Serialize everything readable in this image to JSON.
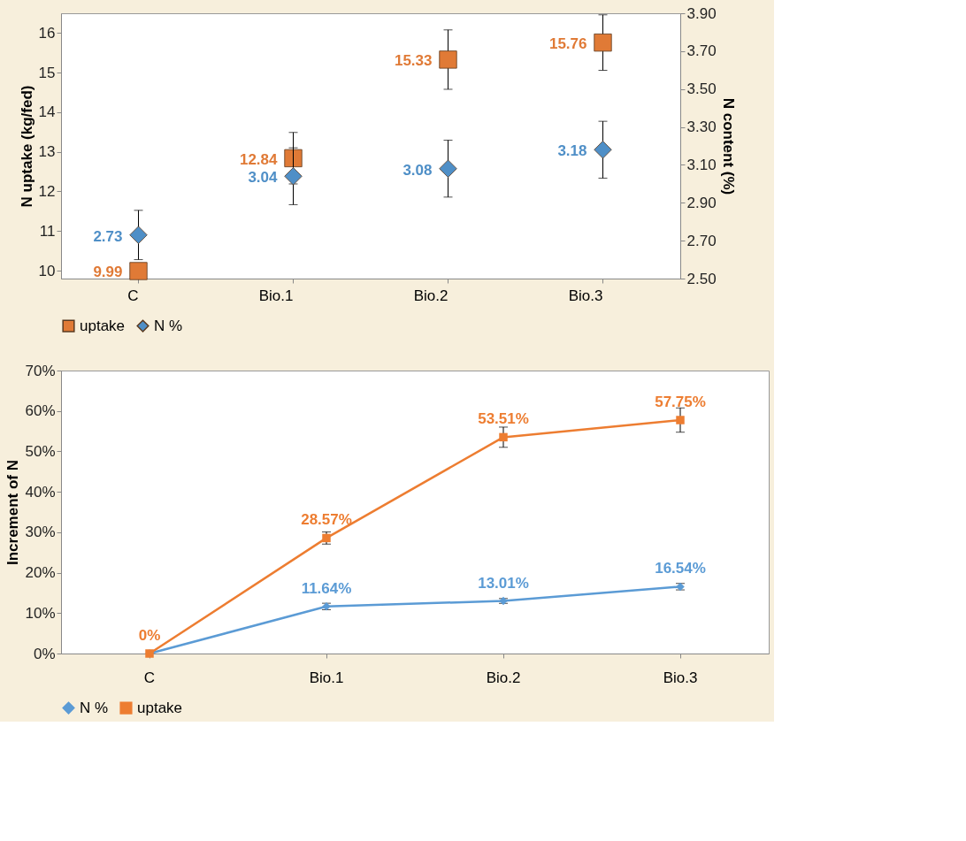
{
  "chart_data": [
    {
      "type": "scatter",
      "categories": [
        "C",
        "Bio.1",
        "Bio.2",
        "Bio.3"
      ],
      "ylabel": "N uptake (kg/fed)",
      "y2label": "N content (%)",
      "series": [
        {
          "name": "uptake",
          "color": "#e07a36",
          "marker": "square",
          "values": [
            9.99,
            12.84,
            15.33,
            15.76
          ],
          "errors": [
            null,
            0.65,
            0.75,
            0.7
          ]
        },
        {
          "name": "N %",
          "color": "#4f8fc7",
          "marker": "diamond",
          "axis": "y2",
          "values": [
            2.73,
            3.04,
            3.08,
            3.18
          ],
          "errors": [
            0.13,
            0.15,
            0.15,
            0.15
          ]
        }
      ],
      "ylim": [
        9.8,
        16.5
      ],
      "yticks": [
        10,
        11,
        12,
        13,
        14,
        15,
        16
      ],
      "y2lim": [
        2.5,
        3.9
      ],
      "y2ticks": [
        {
          "value": 2.5,
          "label": "2.50"
        },
        {
          "value": 2.7,
          "label": "2.70"
        },
        {
          "value": 2.9,
          "label": "2.90"
        },
        {
          "value": 3.1,
          "label": "3.10"
        },
        {
          "value": 3.3,
          "label": "3.30"
        },
        {
          "value": 3.5,
          "label": "3.50"
        },
        {
          "value": 3.7,
          "label": "3.70"
        },
        {
          "value": 3.9,
          "label": "3.90"
        }
      ],
      "data_labels": true,
      "legend": "bottom",
      "grid": false
    },
    {
      "type": "line",
      "categories": [
        "C",
        "Bio.1",
        "Bio.2",
        "Bio.3"
      ],
      "ylabel": "Increment of N",
      "series": [
        {
          "name": "N %",
          "color": "#5b9bd5",
          "marker": "diamond",
          "values": [
            0,
            11.64,
            13.01,
            16.54
          ],
          "errors": [
            null,
            0.8,
            0.6,
            0.8
          ],
          "value_labels": [
            null,
            "11.64%",
            "13.01%",
            "16.54%"
          ]
        },
        {
          "name": "uptake",
          "color": "#ed7d31",
          "marker": "square",
          "values": [
            0,
            28.57,
            53.51,
            57.75
          ],
          "errors": [
            null,
            1.5,
            2.5,
            3
          ],
          "value_labels": [
            "0%",
            "28.57%",
            "53.51%",
            "57.75%"
          ]
        }
      ],
      "ylim": [
        0,
        70
      ],
      "yticks": [
        {
          "value": 0,
          "label": "0%"
        },
        {
          "value": 10,
          "label": "10%"
        },
        {
          "value": 20,
          "label": "20%"
        },
        {
          "value": 30,
          "label": "30%"
        },
        {
          "value": 40,
          "label": "40%"
        },
        {
          "value": 50,
          "label": "50%"
        },
        {
          "value": 60,
          "label": "60%"
        },
        {
          "value": 70,
          "label": "70%"
        }
      ],
      "legend": "bottom",
      "grid": false,
      "line_style": "solid"
    }
  ]
}
